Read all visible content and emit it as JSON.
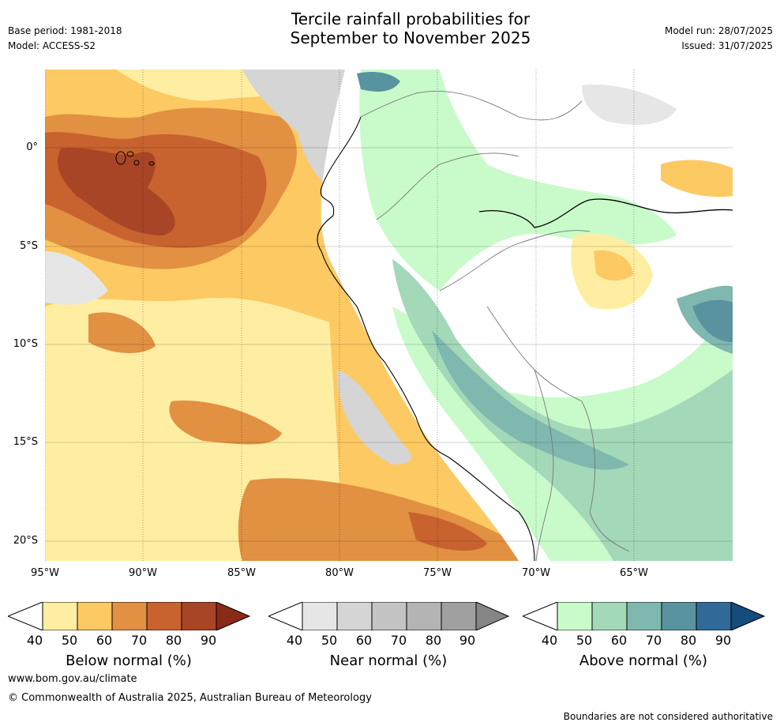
{
  "header": {
    "title_line1": "Tercile rainfall probabilities for",
    "title_line2": "September to November 2025",
    "base_period": "Base period: 1981-2018",
    "model": "Model: ACCESS-S2",
    "model_run": "Model run: 28/07/2025",
    "issued": "Issued: 31/07/2025"
  },
  "axes": {
    "lon_labels": [
      "95°W",
      "90°W",
      "85°W",
      "80°W",
      "75°W",
      "70°W",
      "65°W"
    ],
    "lat_labels": [
      "0°",
      "5°S",
      "10°S",
      "15°S",
      "20°S"
    ]
  },
  "colorbars": [
    {
      "label": "Below normal (%)",
      "ticks": [
        "40",
        "50",
        "60",
        "70",
        "80",
        "90"
      ],
      "colors": [
        "#ffffff",
        "#ffeea2",
        "#fdc962",
        "#e29042",
        "#c8622f",
        "#a84526",
        "#8a2a18"
      ]
    },
    {
      "label": "Near normal (%)",
      "ticks": [
        "40",
        "50",
        "60",
        "70",
        "80",
        "90"
      ],
      "colors": [
        "#ffffff",
        "#e6e6e6",
        "#d5d5d5",
        "#c4c4c4",
        "#b4b4b4",
        "#a0a0a0",
        "#858585"
      ]
    },
    {
      "label": "Above normal (%)",
      "ticks": [
        "40",
        "50",
        "60",
        "70",
        "80",
        "90"
      ],
      "colors": [
        "#ffffff",
        "#c9fbca",
        "#a3d8b9",
        "#7fb8af",
        "#5a93a0",
        "#316a99",
        "#164b7d"
      ]
    }
  ],
  "footer": {
    "website": "www.bom.gov.au/climate",
    "copyright": "© Commonwealth of Australia 2025, Australian Bureau of Meteorology",
    "disclaimer": "Boundaries are not considered authoritative"
  }
}
